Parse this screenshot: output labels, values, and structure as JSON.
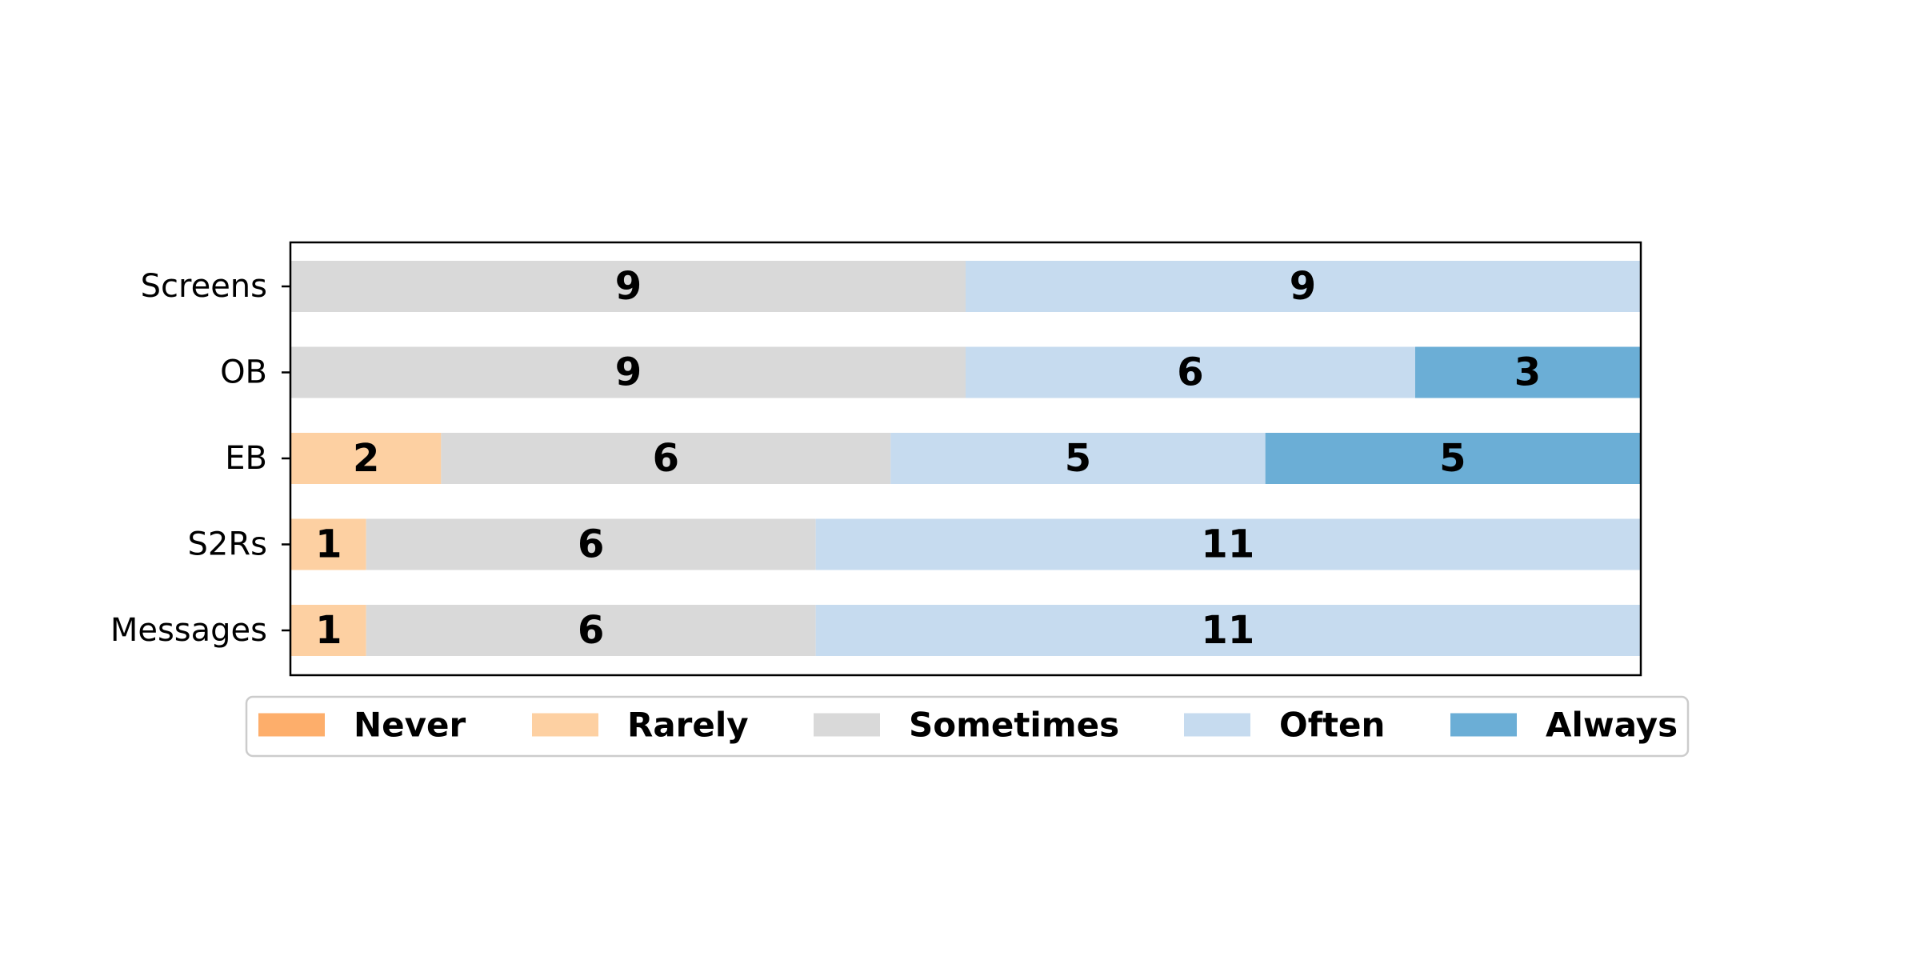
{
  "chart_data": {
    "type": "bar",
    "orientation": "horizontal",
    "stacked": true,
    "categories": [
      "Screens",
      "OB",
      "EB",
      "S2Rs",
      "Messages"
    ],
    "series": [
      {
        "name": "Never",
        "color": "#fdae6b",
        "values": [
          0,
          0,
          0,
          0,
          0
        ]
      },
      {
        "name": "Rarely",
        "color": "#fdd0a2",
        "values": [
          0,
          0,
          2,
          1,
          1
        ]
      },
      {
        "name": "Sometimes",
        "color": "#d9d9d9",
        "values": [
          9,
          9,
          6,
          6,
          6
        ]
      },
      {
        "name": "Often",
        "color": "#c6dbef",
        "values": [
          9,
          6,
          5,
          11,
          11
        ]
      },
      {
        "name": "Always",
        "color": "#6baed6",
        "values": [
          0,
          3,
          5,
          0,
          0
        ]
      }
    ],
    "xlim": [
      0,
      18
    ],
    "x_axis_visible": false,
    "grid": false,
    "legend": "bottom"
  }
}
